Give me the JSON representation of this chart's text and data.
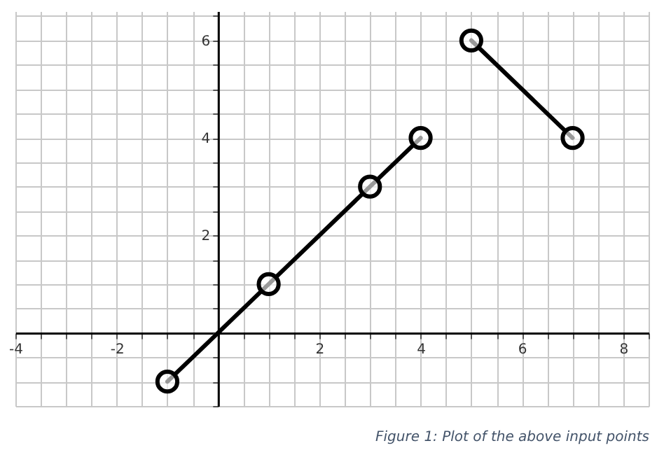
{
  "chart_data": {
    "type": "line",
    "marker": "circle",
    "line_style": "solid",
    "grid": true,
    "legend": false,
    "series": [
      {
        "color": "#000000",
        "x": [
          -1,
          1,
          3,
          4
        ],
        "values": [
          -1,
          1,
          3,
          4
        ]
      },
      {
        "color": "#000000",
        "x": [
          5,
          7
        ],
        "values": [
          6,
          4
        ]
      }
    ],
    "xlim": [
      -4,
      8.5
    ],
    "ylim": [
      -1.5,
      6.6
    ],
    "xticks": [
      -4,
      {
        "value": -3.5,
        "label": null
      },
      {
        "value": -3,
        "label": null
      },
      {
        "value": -2.5,
        "label": null
      },
      -2,
      {
        "value": -1.5,
        "label": null
      },
      {
        "value": -1,
        "label": null
      },
      {
        "value": -0.5,
        "label": null
      },
      {
        "value": 0,
        "label": null
      },
      {
        "value": 0.5,
        "label": null
      },
      {
        "value": 1,
        "label": null
      },
      {
        "value": 1.5,
        "label": null
      },
      2,
      {
        "value": 2.5,
        "label": null
      },
      {
        "value": 3,
        "label": null
      },
      {
        "value": 3.5,
        "label": null
      },
      4,
      {
        "value": 4.5,
        "label": null
      },
      {
        "value": 5,
        "label": null
      },
      {
        "value": 5.5,
        "label": null
      },
      6,
      {
        "value": 6.5,
        "label": null
      },
      {
        "value": 7,
        "label": null
      },
      {
        "value": 7.5,
        "label": null
      },
      8,
      {
        "value": 8.5,
        "label": null
      }
    ],
    "yticks": [
      {
        "value": -1.5,
        "label": null
      },
      {
        "value": -1,
        "label": null
      },
      {
        "value": -0.5,
        "label": null
      },
      {
        "value": 0,
        "label": null
      },
      {
        "value": 0.5,
        "label": null
      },
      {
        "value": 1,
        "label": null
      },
      {
        "value": 1.5,
        "label": null
      },
      2,
      {
        "value": 2.5,
        "label": null
      },
      {
        "value": 3,
        "label": null
      },
      {
        "value": 3.5,
        "label": null
      },
      4,
      {
        "value": 4.5,
        "label": null
      },
      {
        "value": 5,
        "label": null
      },
      {
        "value": 5.5,
        "label": null
      },
      6,
      {
        "value": 6.5,
        "label": null
      }
    ],
    "annotations": [
      "Figure 1: Plot of the above input points"
    ]
  }
}
